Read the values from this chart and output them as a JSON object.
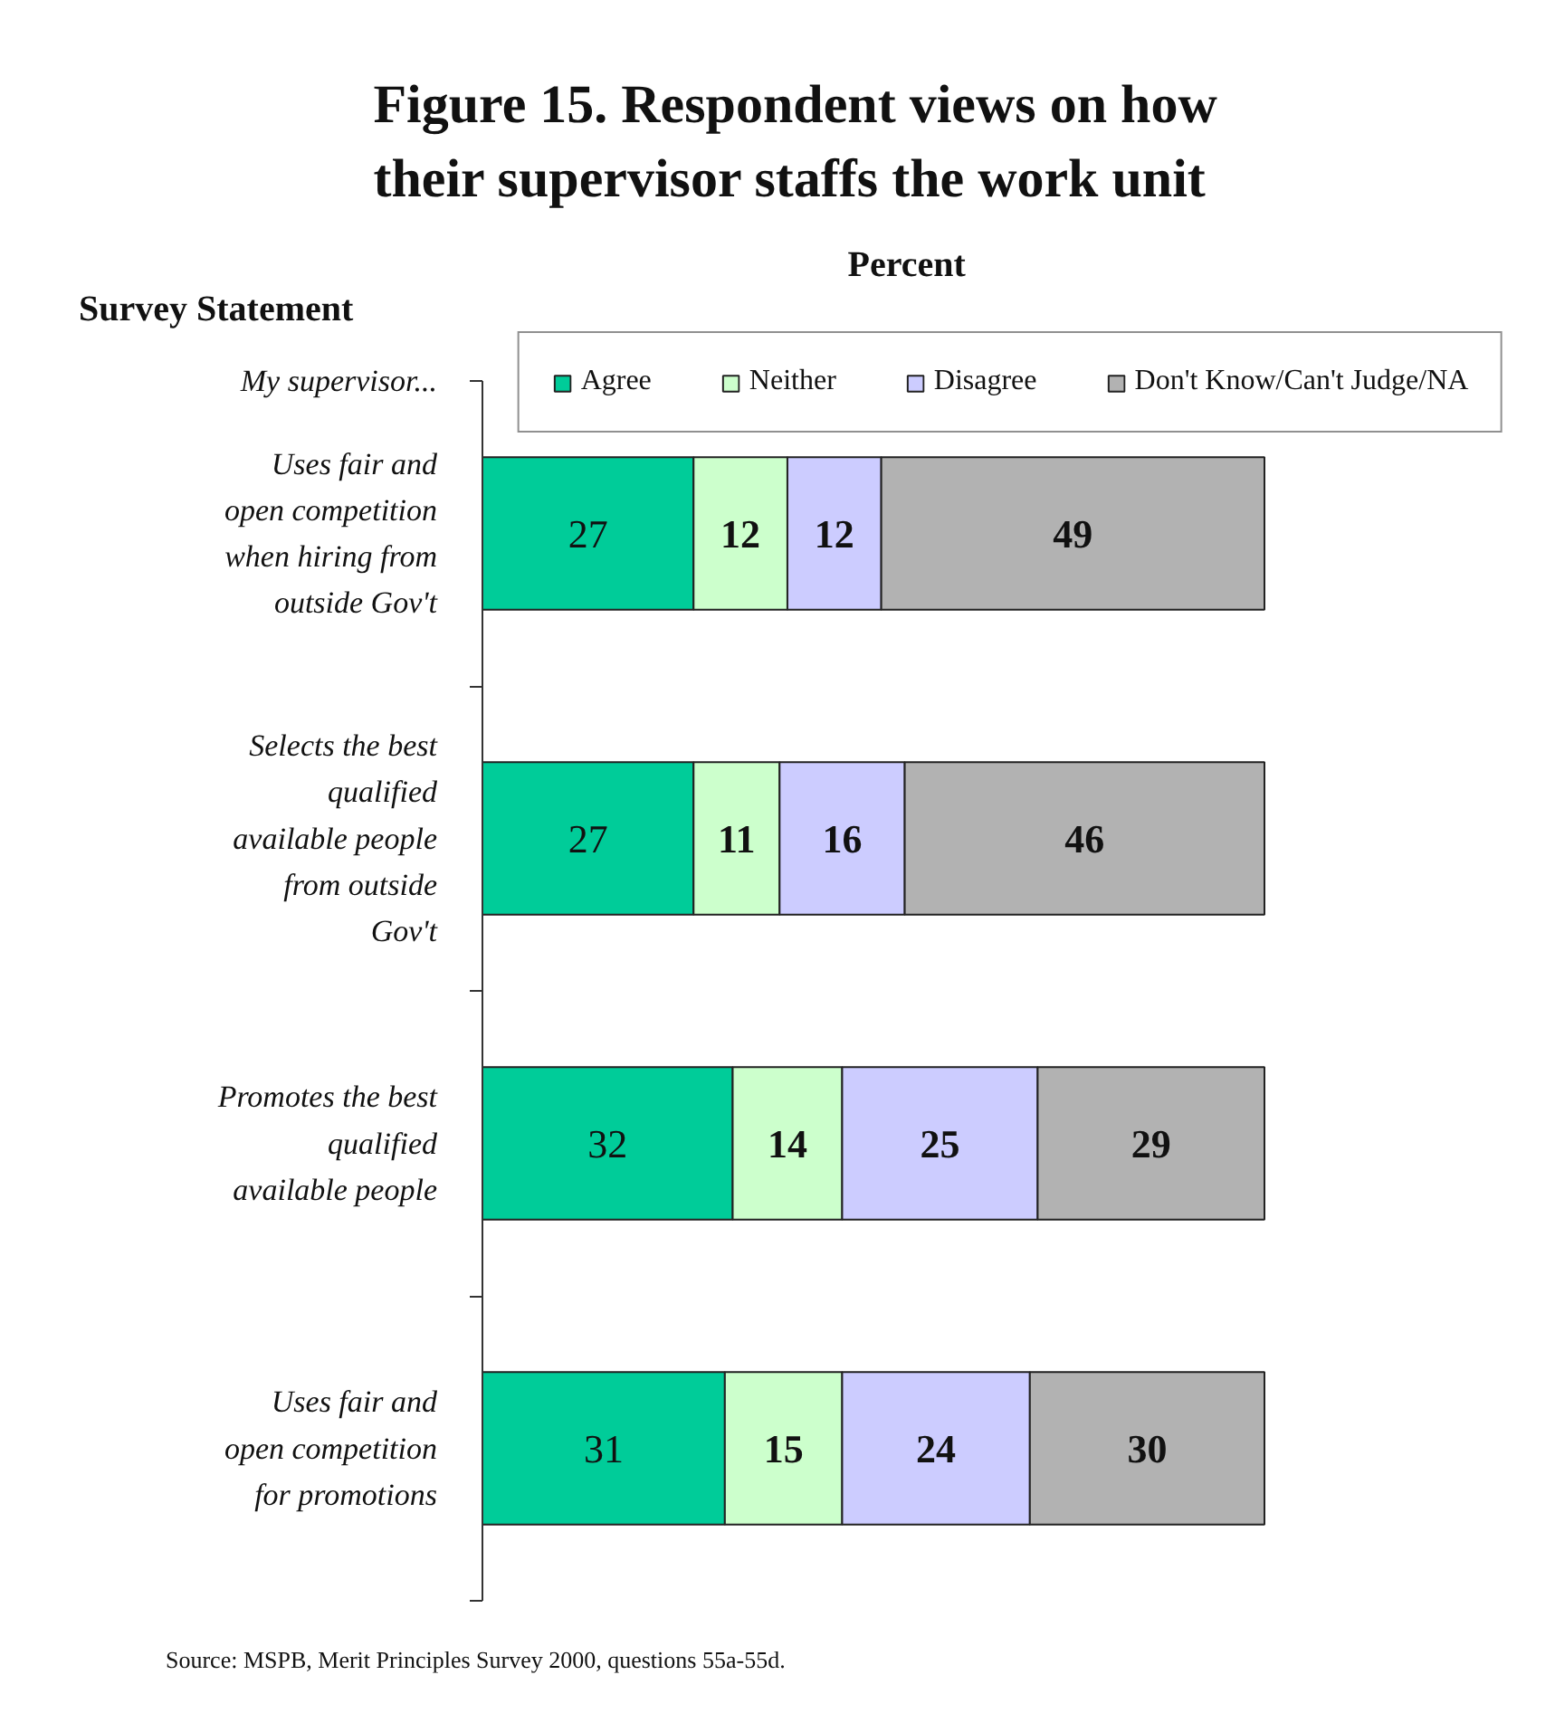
{
  "chart_data": {
    "type": "bar",
    "orientation": "horizontal",
    "stacked": true,
    "title": "Figure 15. Respondent views on how their supervisor staffs the work unit",
    "xlabel": "Percent",
    "ylabel": "Survey Statement",
    "annotations": [
      "My supervisor...",
      "Source: MSPB, Merit Principles Survey 2000, questions 55a-55d."
    ],
    "categories": [
      "Uses fair and open competition when hiring from outside Gov't",
      "Selects the best qualified available people from outside Gov't",
      "Promotes the best qualified available people",
      "Uses fair and open competition for promotions"
    ],
    "series": [
      {
        "name": "Agree",
        "color": "#00cc99",
        "values": [
          27,
          27,
          32,
          31
        ]
      },
      {
        "name": "Neither",
        "color": "#ccffcc",
        "values": [
          12,
          11,
          14,
          15
        ]
      },
      {
        "name": "Disagree",
        "color": "#ccccff",
        "values": [
          12,
          16,
          25,
          24
        ]
      },
      {
        "name": "Don't Know/Can't Judge/NA",
        "color": "#b2b2b2",
        "values": [
          49,
          46,
          29,
          30
        ]
      }
    ],
    "data_labels": true,
    "legend": "top"
  }
}
